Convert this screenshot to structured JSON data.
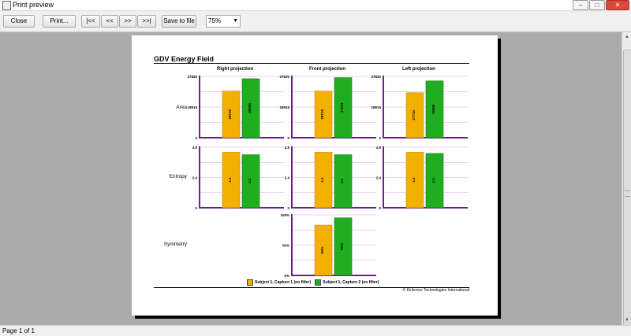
{
  "window": {
    "title": "Print preview"
  },
  "toolbar": {
    "close": "Close",
    "print": "Print...",
    "first": "|<<",
    "prev": "<<",
    "next": ">>",
    "last": ">>|",
    "save": "Save to file",
    "zoom": "75%"
  },
  "status": {
    "page": "Page 1 of 1"
  },
  "report": {
    "title": "GDV Energy Field",
    "columns": [
      "Right projection",
      "Front projection",
      "Left projection"
    ],
    "rows": [
      "Area",
      "Entropy",
      "Symmetry"
    ],
    "copyright": "© Kirlionics Technologies International",
    "legend": [
      "Subject 1, Capture 1 (no filter)",
      "Subject 1, Capture 2 (no filter)"
    ]
  },
  "colors": {
    "series1": "#f4b000",
    "series2": "#1fae1f",
    "axis": "#6a1f8a",
    "grid": "#d7a6e8"
  },
  "chart_data": [
    {
      "type": "bar",
      "name": "Area / Right projection",
      "ylim": [
        0,
        37830
      ],
      "ticks": [
        "37830",
        "18915",
        "0"
      ],
      "series": [
        {
          "name": "Subject 1, Capture 1 (no filter)",
          "values": [
            28719
          ],
          "label": "28719"
        },
        {
          "name": "Subject 1, Capture 2 (no filter)",
          "values": [
            36365
          ],
          "label": "36365"
        }
      ]
    },
    {
      "type": "bar",
      "name": "Area / Front projection",
      "ylim": [
        0,
        37830
      ],
      "ticks": [
        "37830",
        "18915",
        "0"
      ],
      "series": [
        {
          "name": "Subject 1, Capture 1 (no filter)",
          "values": [
            28719
          ],
          "label": "28719"
        },
        {
          "name": "Subject 1, Capture 2 (no filter)",
          "values": [
            37023
          ],
          "label": "37023"
        }
      ]
    },
    {
      "type": "bar",
      "name": "Area / Left projection",
      "ylim": [
        0,
        37830
      ],
      "ticks": [
        "37830",
        "18915",
        "0"
      ],
      "series": [
        {
          "name": "Subject 1, Capture 1 (no filter)",
          "values": [
            27734
          ],
          "label": "27734"
        },
        {
          "name": "Subject 1, Capture 2 (no filter)",
          "values": [
            35000
          ],
          "label": "35000"
        }
      ]
    },
    {
      "type": "bar",
      "name": "Entropy / Right projection",
      "ylim": [
        0,
        4.8
      ],
      "ticks": [
        "4.8",
        "2.4",
        "0"
      ],
      "series": [
        {
          "name": "Subject 1, Capture 1 (no filter)",
          "values": [
            4.4
          ],
          "label": "4.4"
        },
        {
          "name": "Subject 1, Capture 2 (no filter)",
          "values": [
            4.2
          ],
          "label": "4.2"
        }
      ]
    },
    {
      "type": "bar",
      "name": "Entropy / Front projection",
      "ylim": [
        0,
        4.8
      ],
      "ticks": [
        "4.8",
        "2.4",
        "0"
      ],
      "series": [
        {
          "name": "Subject 1, Capture 1 (no filter)",
          "values": [
            4.4
          ],
          "label": "4.4"
        },
        {
          "name": "Subject 1, Capture 2 (no filter)",
          "values": [
            4.2
          ],
          "label": "4.2"
        }
      ]
    },
    {
      "type": "bar",
      "name": "Entropy / Left projection",
      "ylim": [
        0,
        4.8
      ],
      "ticks": [
        "4.8",
        "2.4",
        "0"
      ],
      "series": [
        {
          "name": "Subject 1, Capture 1 (no filter)",
          "values": [
            4.4
          ],
          "label": "4.4"
        },
        {
          "name": "Subject 1, Capture 2 (no filter)",
          "values": [
            4.3
          ],
          "label": "4.3"
        }
      ]
    },
    {
      "type": "bar",
      "name": "Symmetry / Front projection",
      "ylim": [
        0,
        100
      ],
      "ticks": [
        "100%",
        "50%",
        "0%"
      ],
      "series": [
        {
          "name": "Subject 1, Capture 1 (no filter)",
          "values": [
            83
          ],
          "label": "83%"
        },
        {
          "name": "Subject 1, Capture 2 (no filter)",
          "values": [
            95
          ],
          "label": "95%"
        }
      ]
    }
  ]
}
